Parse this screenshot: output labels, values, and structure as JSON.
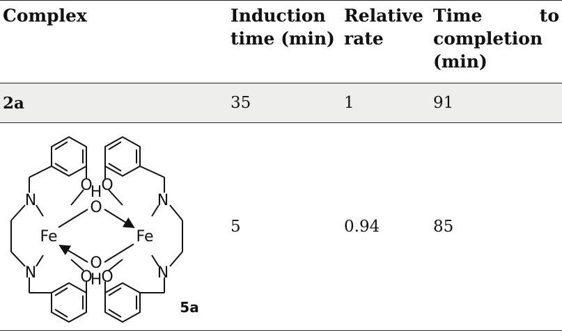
{
  "header": {
    "complex": "Complex",
    "induction_line1": "Induction",
    "induction_line2": "time (min)",
    "relative_line1": "Relative",
    "relative_line2": "rate",
    "time_word": "Time",
    "to_word": "to",
    "completion": "completion",
    "min": "(min)"
  },
  "rows": [
    {
      "complex": "2a",
      "induction_time": "35",
      "relative_rate": "1",
      "time_to_completion": "91"
    },
    {
      "complex_structure": {
        "label": "5a",
        "atoms": {
          "fe": "Fe",
          "n": "N",
          "o": "O",
          "h": "H"
        }
      },
      "induction_time": "5",
      "relative_rate": "0.94",
      "time_to_completion": "85"
    }
  ]
}
